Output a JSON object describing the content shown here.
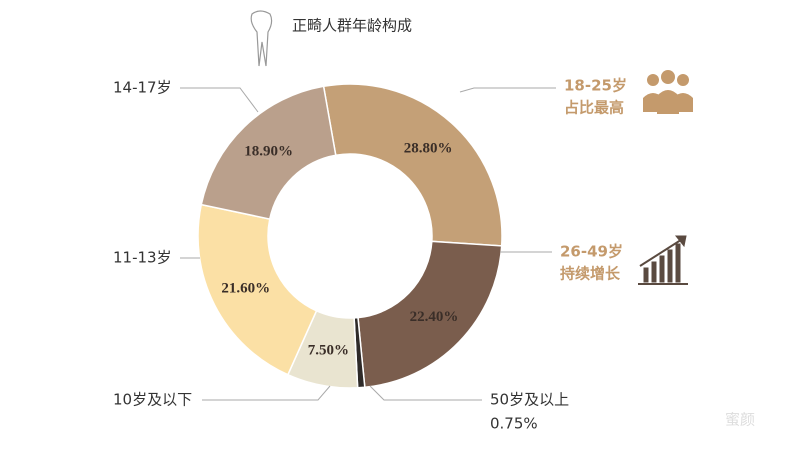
{
  "chart_data": {
    "type": "pie",
    "title": "正畸人群年龄构成",
    "categories": [
      "18-25岁",
      "26-49岁",
      "50岁及以上",
      "10岁及以下",
      "11-13岁",
      "14-17岁"
    ],
    "values": [
      28.8,
      22.4,
      0.75,
      7.5,
      21.6,
      18.9
    ],
    "value_labels": [
      "28.80%",
      "22.40%",
      "0.75%",
      "7.50%",
      "21.60%",
      "18.90%"
    ],
    "colors": [
      "#c4a077",
      "#7a5d4d",
      "#2e2a28",
      "#e9e4d0",
      "#fbe0a5",
      "#baa08c"
    ],
    "annotations": [
      "占比最高",
      "持续增长"
    ]
  },
  "watermark": "蜜颜"
}
